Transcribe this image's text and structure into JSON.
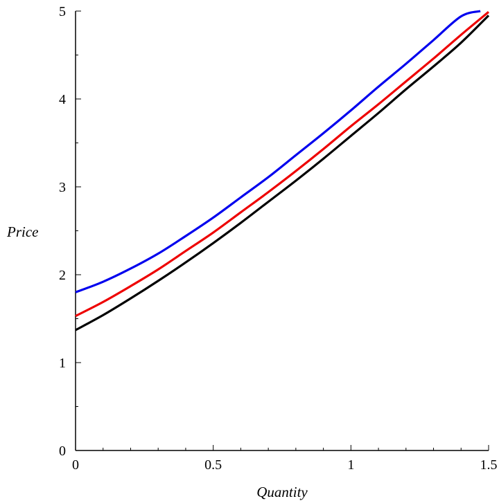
{
  "chart_data": {
    "type": "line",
    "title": "",
    "xlabel": "Quantity",
    "ylabel": "Price",
    "xlim": [
      0,
      1.5
    ],
    "ylim": [
      0,
      5
    ],
    "x_ticks": [
      0,
      0.5,
      1,
      1.5
    ],
    "x_tick_labels": [
      "0",
      "0.5",
      "1",
      "1.5"
    ],
    "y_ticks": [
      0,
      1,
      2,
      3,
      4,
      5
    ],
    "y_tick_labels": [
      "0",
      "1",
      "2",
      "3",
      "4",
      "5"
    ],
    "grid": false,
    "legend": "none",
    "series": [
      {
        "color": "#0000ee",
        "x": [
          0,
          0.1,
          0.2,
          0.3,
          0.4,
          0.5,
          0.6,
          0.7,
          0.8,
          0.9,
          1.0,
          1.1,
          1.2,
          1.3,
          1.4,
          1.47
        ],
        "y": [
          1.8,
          1.92,
          2.07,
          2.24,
          2.44,
          2.65,
          2.88,
          3.11,
          3.36,
          3.61,
          3.87,
          4.14,
          4.4,
          4.67,
          4.94,
          5.0
        ]
      },
      {
        "color": "#ee0000",
        "x": [
          0,
          0.1,
          0.2,
          0.3,
          0.4,
          0.5,
          0.6,
          0.7,
          0.8,
          0.9,
          1.0,
          1.1,
          1.2,
          1.3,
          1.4,
          1.5
        ],
        "y": [
          1.53,
          1.69,
          1.87,
          2.06,
          2.27,
          2.48,
          2.71,
          2.94,
          3.18,
          3.43,
          3.69,
          3.94,
          4.2,
          4.46,
          4.73,
          4.99
        ]
      },
      {
        "color": "#000000",
        "x": [
          0,
          0.1,
          0.2,
          0.3,
          0.4,
          0.5,
          0.6,
          0.7,
          0.8,
          0.9,
          1.0,
          1.1,
          1.2,
          1.3,
          1.4,
          1.5
        ],
        "y": [
          1.37,
          1.54,
          1.73,
          1.93,
          2.14,
          2.36,
          2.59,
          2.83,
          3.07,
          3.32,
          3.58,
          3.84,
          4.11,
          4.37,
          4.64,
          4.95
        ]
      }
    ]
  }
}
